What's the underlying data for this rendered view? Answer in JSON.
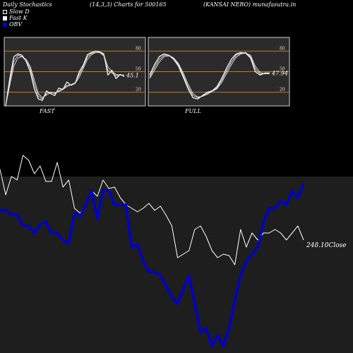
{
  "header": {
    "title": "Daily Stochastics",
    "params": "(14,3,3) Charts for 500165",
    "company": "(KANSAI NERO) munafasutra.in"
  },
  "legend": [
    {
      "label": "Slow  D",
      "style": "outline"
    },
    {
      "label": "Fast K",
      "style": "fill"
    },
    {
      "label": "OBV",
      "style": "blue"
    }
  ],
  "colors": {
    "background": "#000000",
    "panel": "#2b2b2b",
    "border": "#cccccc",
    "level_line": "#c47a1e",
    "price": "#ffffff",
    "obv": "#0000cc",
    "lower_area": "#1e1e1e"
  },
  "chart_data": [
    {
      "type": "line",
      "panel": "FAST",
      "ylim": [
        0,
        100
      ],
      "levels": [
        20,
        50,
        80
      ],
      "ytick_labels": [
        "80",
        "50",
        "20"
      ],
      "last_value_label": "45.1",
      "series": [
        {
          "values": [
            0,
            40,
            72,
            76,
            74,
            65,
            50,
            25,
            10,
            8,
            22,
            18,
            15,
            26,
            24,
            35,
            30,
            33,
            50,
            60,
            75,
            78,
            80,
            79,
            76,
            45,
            52,
            40,
            46,
            43
          ]
        },
        {
          "values": [
            0,
            35,
            65,
            74,
            72,
            66,
            55,
            32,
            14,
            10,
            18,
            20,
            18,
            22,
            25,
            30,
            31,
            34,
            46,
            58,
            72,
            77,
            78,
            78,
            73,
            52,
            48,
            44,
            45,
            45
          ]
        },
        {
          "values": [
            0,
            30,
            58,
            70,
            72,
            68,
            58,
            38,
            18,
            12,
            16,
            19,
            19,
            21,
            24,
            28,
            31,
            33,
            42,
            55,
            68,
            75,
            78,
            78,
            75,
            57,
            50,
            46,
            45,
            45
          ]
        }
      ]
    },
    {
      "type": "line",
      "panel": "FULL",
      "ylim": [
        0,
        100
      ],
      "levels": [
        20,
        50,
        80
      ],
      "ytick_labels": [
        "80",
        "50",
        "20"
      ],
      "last_value_label": "47.94",
      "series": [
        {
          "values": [
            45,
            60,
            72,
            76,
            74,
            68,
            58,
            42,
            25,
            12,
            10,
            15,
            20,
            22,
            28,
            40,
            55,
            68,
            76,
            78,
            77,
            70,
            50,
            45,
            48,
            48
          ]
        },
        {
          "values": [
            42,
            56,
            68,
            74,
            74,
            70,
            60,
            45,
            28,
            15,
            12,
            14,
            18,
            22,
            26,
            37,
            51,
            64,
            74,
            77,
            78,
            72,
            54,
            47,
            47,
            48
          ]
        },
        {
          "values": [
            40,
            52,
            64,
            72,
            73,
            70,
            62,
            48,
            32,
            18,
            13,
            14,
            17,
            21,
            25,
            34,
            47,
            60,
            71,
            76,
            77,
            74,
            58,
            49,
            47,
            47
          ]
        }
      ]
    },
    {
      "type": "line",
      "panel": "price-obv",
      "last_price_label": "248.10Close",
      "series": [
        {
          "name": "Price",
          "values": [
            110,
            74,
            100,
            95,
            130,
            123,
            104,
            115,
            93,
            93,
            120,
            85,
            95,
            55,
            48,
            60,
            80,
            72,
            95,
            83,
            85,
            70,
            60,
            55,
            50,
            55,
            62,
            52,
            58,
            45,
            30,
            -15,
            -10,
            -5,
            25,
            30,
            15,
            -5,
            -15,
            -10,
            -12,
            -25,
            25,
            0,
            20,
            10,
            20,
            20,
            25,
            20,
            10,
            20,
            30,
            10
          ]
        },
        {
          "name": "OBV",
          "values": [
            52,
            52,
            46,
            46,
            30,
            30,
            20,
            32,
            36,
            20,
            20,
            10,
            5,
            48,
            44,
            60,
            80,
            40,
            80,
            80,
            60,
            60,
            60,
            0,
            4,
            -20,
            -35,
            -35,
            -40,
            -55,
            -70,
            -80,
            -60,
            -40,
            -80,
            -120,
            -115,
            -140,
            -125,
            -140,
            -115,
            -75,
            -40,
            -20,
            -10,
            0,
            35,
            55,
            55,
            65,
            60,
            80,
            70,
            90
          ]
        }
      ]
    }
  ],
  "panels": {
    "fast_label": "FAST",
    "full_label": "FULL"
  }
}
